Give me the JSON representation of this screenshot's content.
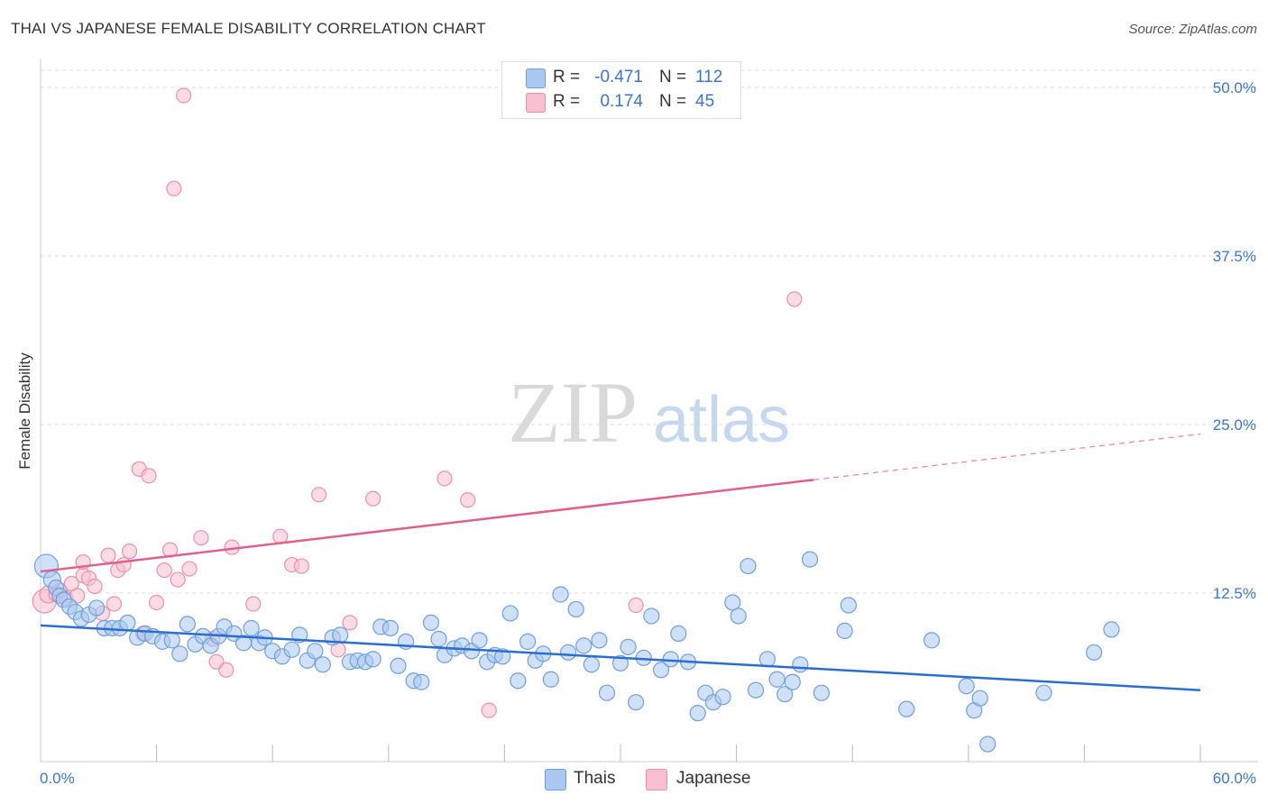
{
  "title": "THAI VS JAPANESE FEMALE DISABILITY CORRELATION CHART",
  "source": "Source: ZipAtlas.com",
  "watermark": {
    "part1": "ZIP",
    "part2": "atlas"
  },
  "colors": {
    "thai_fill": "#aac8f0",
    "thai_stroke": "#6e9fdc",
    "thai_line": "#2a6fcf",
    "japanese_fill": "#f8bfd0",
    "japanese_stroke": "#ec8fac",
    "japanese_line": "#e0608d",
    "grid": "#dddddd",
    "axis_text": "#3a76d0"
  },
  "stats": {
    "thai": {
      "r_label": "R =",
      "r_value": "-0.471",
      "n_label": "N =",
      "n_value": "112"
    },
    "japanese": {
      "r_label": "R =",
      "r_value": "0.174",
      "n_label": "N =",
      "n_value": "45"
    }
  },
  "legend": {
    "thai": "Thais",
    "japanese": "Japanese"
  },
  "chart_data": {
    "type": "scatter",
    "title": "THAI VS JAPANESE FEMALE DISABILITY CORRELATION CHART",
    "xlabel": "",
    "ylabel": "Female Disability",
    "xlim": [
      0,
      60
    ],
    "ylim": [
      0,
      52
    ],
    "x_tick_labels": {
      "left": "0.0%",
      "right": "60.0%"
    },
    "y_ticks": [
      {
        "value": 12.5,
        "label": "12.5%"
      },
      {
        "value": 25.0,
        "label": "25.0%"
      },
      {
        "value": 37.5,
        "label": "37.5%"
      },
      {
        "value": 50.0,
        "label": "50.0%"
      }
    ],
    "x_minor_ticks": [
      6,
      12,
      18,
      24,
      30,
      36,
      42,
      48,
      54,
      60
    ],
    "grid": true,
    "legend_position": "bottom-center",
    "series": [
      {
        "name": "Thais",
        "trend": {
          "x0": 0,
          "y0": 10.1,
          "x1": 60,
          "y1": 5.3,
          "dashed_from": null
        },
        "points": [
          [
            0.3,
            14.5
          ],
          [
            0.6,
            13.5
          ],
          [
            0.8,
            12.9
          ],
          [
            1.0,
            12.3
          ],
          [
            1.2,
            12.0
          ],
          [
            1.5,
            11.5
          ],
          [
            1.8,
            11.1
          ],
          [
            2.1,
            10.6
          ],
          [
            2.5,
            10.9
          ],
          [
            2.9,
            11.4
          ],
          [
            3.3,
            9.9
          ],
          [
            3.7,
            9.9
          ],
          [
            4.1,
            9.9
          ],
          [
            4.5,
            10.3
          ],
          [
            5.0,
            9.2
          ],
          [
            5.4,
            9.5
          ],
          [
            5.8,
            9.3
          ],
          [
            6.3,
            8.9
          ],
          [
            6.8,
            9.0
          ],
          [
            7.2,
            8.0
          ],
          [
            7.6,
            10.2
          ],
          [
            8.0,
            8.7
          ],
          [
            8.4,
            9.3
          ],
          [
            8.8,
            8.6
          ],
          [
            9.2,
            9.3
          ],
          [
            9.5,
            10.0
          ],
          [
            10.0,
            9.5
          ],
          [
            10.5,
            8.8
          ],
          [
            10.9,
            9.9
          ],
          [
            11.3,
            8.8
          ],
          [
            11.6,
            9.2
          ],
          [
            12.0,
            8.2
          ],
          [
            12.5,
            7.8
          ],
          [
            13.0,
            8.3
          ],
          [
            13.4,
            9.4
          ],
          [
            13.8,
            7.5
          ],
          [
            14.2,
            8.2
          ],
          [
            14.6,
            7.2
          ],
          [
            15.1,
            9.2
          ],
          [
            15.5,
            9.4
          ],
          [
            16.0,
            7.4
          ],
          [
            16.4,
            7.5
          ],
          [
            16.8,
            7.4
          ],
          [
            17.2,
            7.6
          ],
          [
            17.6,
            10.0
          ],
          [
            18.1,
            9.9
          ],
          [
            18.5,
            7.1
          ],
          [
            18.9,
            8.9
          ],
          [
            19.3,
            6.0
          ],
          [
            19.7,
            5.9
          ],
          [
            20.2,
            10.3
          ],
          [
            20.6,
            9.1
          ],
          [
            20.9,
            7.9
          ],
          [
            21.4,
            8.4
          ],
          [
            21.8,
            8.6
          ],
          [
            22.3,
            8.2
          ],
          [
            22.7,
            9.0
          ],
          [
            23.1,
            7.4
          ],
          [
            23.5,
            7.9
          ],
          [
            23.9,
            7.8
          ],
          [
            24.3,
            11.0
          ],
          [
            24.7,
            6.0
          ],
          [
            25.2,
            8.9
          ],
          [
            25.6,
            7.5
          ],
          [
            26.0,
            8.0
          ],
          [
            26.4,
            6.1
          ],
          [
            26.9,
            12.4
          ],
          [
            27.3,
            8.1
          ],
          [
            27.7,
            11.3
          ],
          [
            28.1,
            8.6
          ],
          [
            28.5,
            7.2
          ],
          [
            28.9,
            9.0
          ],
          [
            29.3,
            5.1
          ],
          [
            30.0,
            7.3
          ],
          [
            30.4,
            8.5
          ],
          [
            30.8,
            4.4
          ],
          [
            31.2,
            7.7
          ],
          [
            31.6,
            10.8
          ],
          [
            32.1,
            6.8
          ],
          [
            32.6,
            7.6
          ],
          [
            33.0,
            9.5
          ],
          [
            33.5,
            7.4
          ],
          [
            34.0,
            3.6
          ],
          [
            34.4,
            5.1
          ],
          [
            34.8,
            4.4
          ],
          [
            35.3,
            4.8
          ],
          [
            35.8,
            11.8
          ],
          [
            36.1,
            10.8
          ],
          [
            36.6,
            14.5
          ],
          [
            37.0,
            5.3
          ],
          [
            37.6,
            7.6
          ],
          [
            38.1,
            6.1
          ],
          [
            38.5,
            5.0
          ],
          [
            38.9,
            5.9
          ],
          [
            39.3,
            7.2
          ],
          [
            39.8,
            15.0
          ],
          [
            40.4,
            5.1
          ],
          [
            41.6,
            9.7
          ],
          [
            41.8,
            11.6
          ],
          [
            44.8,
            3.9
          ],
          [
            46.1,
            9.0
          ],
          [
            47.9,
            5.6
          ],
          [
            48.3,
            3.8
          ],
          [
            48.6,
            4.7
          ],
          [
            49.0,
            1.3
          ],
          [
            51.9,
            5.1
          ],
          [
            54.5,
            8.1
          ],
          [
            55.4,
            9.8
          ]
        ],
        "sizes": {
          "0": 24,
          "1": 17,
          "2": 15
        }
      },
      {
        "name": "Japanese",
        "trend": {
          "x0": 0,
          "y0": 14.1,
          "x1": 60,
          "y1": 24.3,
          "solid_until": 40
        },
        "points": [
          [
            0.2,
            11.9
          ],
          [
            0.4,
            12.4
          ],
          [
            0.8,
            12.4
          ],
          [
            1.0,
            12.7
          ],
          [
            1.3,
            12.1
          ],
          [
            1.6,
            13.2
          ],
          [
            1.9,
            12.3
          ],
          [
            2.2,
            13.8
          ],
          [
            2.2,
            14.8
          ],
          [
            2.5,
            13.6
          ],
          [
            2.8,
            13.0
          ],
          [
            3.2,
            11.0
          ],
          [
            3.5,
            15.3
          ],
          [
            3.8,
            11.7
          ],
          [
            4.0,
            14.2
          ],
          [
            4.3,
            14.6
          ],
          [
            4.6,
            15.6
          ],
          [
            5.1,
            21.7
          ],
          [
            5.3,
            9.5
          ],
          [
            5.6,
            21.2
          ],
          [
            6.0,
            11.8
          ],
          [
            6.4,
            14.2
          ],
          [
            6.7,
            15.7
          ],
          [
            6.9,
            42.5
          ],
          [
            7.1,
            13.5
          ],
          [
            7.4,
            49.4
          ],
          [
            7.7,
            14.3
          ],
          [
            8.3,
            16.6
          ],
          [
            8.9,
            9.1
          ],
          [
            9.1,
            7.4
          ],
          [
            9.6,
            6.8
          ],
          [
            9.9,
            15.9
          ],
          [
            11.0,
            11.7
          ],
          [
            12.4,
            16.7
          ],
          [
            13.0,
            14.6
          ],
          [
            13.5,
            14.5
          ],
          [
            14.4,
            19.8
          ],
          [
            15.4,
            8.3
          ],
          [
            16.0,
            10.3
          ],
          [
            17.2,
            19.5
          ],
          [
            20.9,
            21.0
          ],
          [
            22.1,
            19.4
          ],
          [
            23.2,
            3.8
          ],
          [
            30.8,
            11.6
          ],
          [
            39.0,
            34.3
          ]
        ],
        "sizes": {
          "0": 24,
          "1": 17
        }
      }
    ]
  }
}
